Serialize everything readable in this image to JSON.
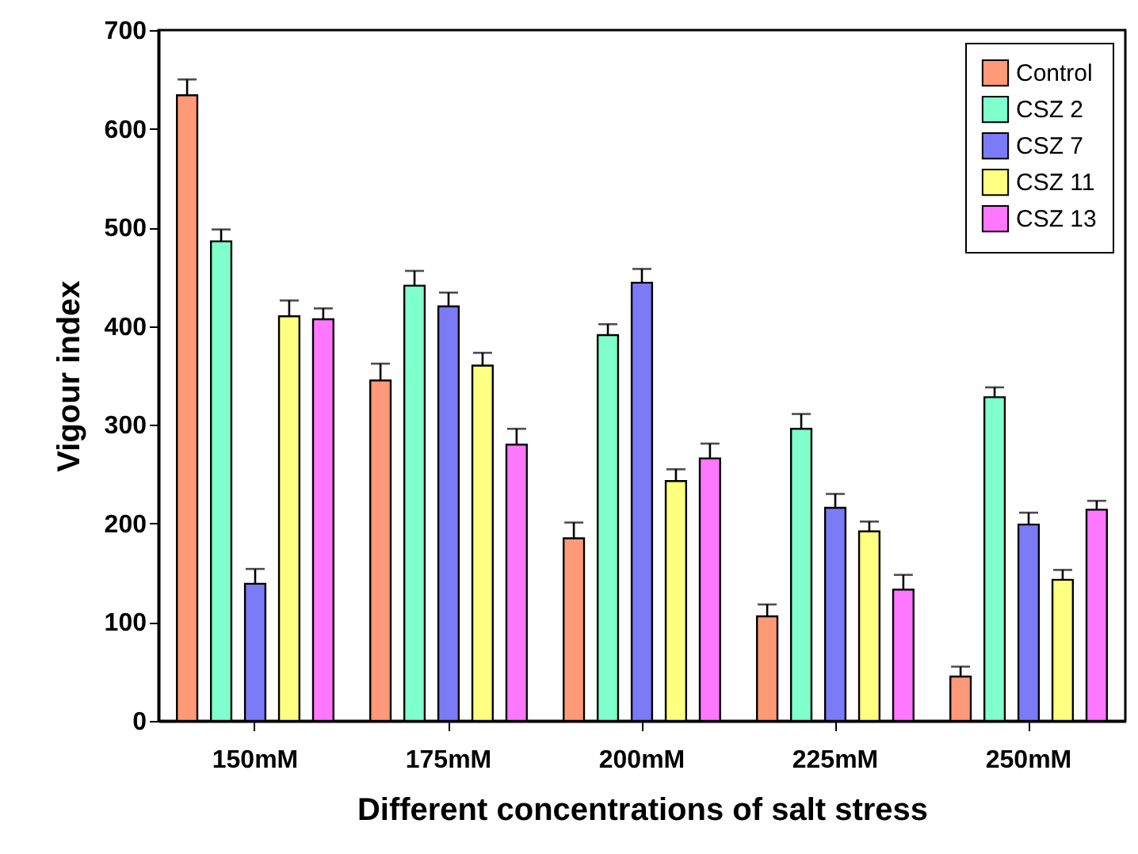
{
  "chart_data": {
    "type": "bar",
    "xlabel": "Different concentrations of salt stress",
    "ylabel": "Vigour index",
    "categories": [
      "150mM",
      "175mM",
      "200mM",
      "225mM",
      "250mM"
    ],
    "series": [
      {
        "name": "Control",
        "color": "#ff9977",
        "values": [
          634,
          345,
          185,
          106,
          45
        ],
        "errors": [
          [
            634,
            650
          ],
          [
            345,
            362
          ],
          [
            185,
            201
          ],
          [
            106,
            118
          ],
          [
            45,
            55
          ]
        ]
      },
      {
        "name": "CSZ 2",
        "color": "#7fffcc",
        "values": [
          486,
          441,
          391,
          296,
          328
        ],
        "errors": [
          [
            486,
            498
          ],
          [
            441,
            456
          ],
          [
            391,
            402
          ],
          [
            296,
            311
          ],
          [
            328,
            338
          ]
        ]
      },
      {
        "name": "CSZ 7",
        "color": "#7b7bf7",
        "values": [
          139,
          420,
          444,
          216,
          199
        ],
        "errors": [
          [
            139,
            154
          ],
          [
            420,
            434
          ],
          [
            444,
            458
          ],
          [
            216,
            230
          ],
          [
            199,
            211
          ]
        ]
      },
      {
        "name": "CSZ 11",
        "color": "#ffff80",
        "values": [
          410,
          360,
          243,
          192,
          143
        ],
        "errors": [
          [
            410,
            426
          ],
          [
            360,
            373
          ],
          [
            243,
            255
          ],
          [
            192,
            202
          ],
          [
            143,
            153
          ]
        ]
      },
      {
        "name": "CSZ 13",
        "color": "#ff77ff",
        "values": [
          407,
          280,
          266,
          133,
          214
        ],
        "errors": [
          [
            407,
            418
          ],
          [
            280,
            296
          ],
          [
            266,
            281
          ],
          [
            133,
            148
          ],
          [
            214,
            223
          ]
        ]
      }
    ],
    "ylim": [
      0,
      700
    ],
    "yticks": [
      0,
      100,
      200,
      300,
      400,
      500,
      600,
      700
    ],
    "grid": false,
    "legend": "top right"
  }
}
